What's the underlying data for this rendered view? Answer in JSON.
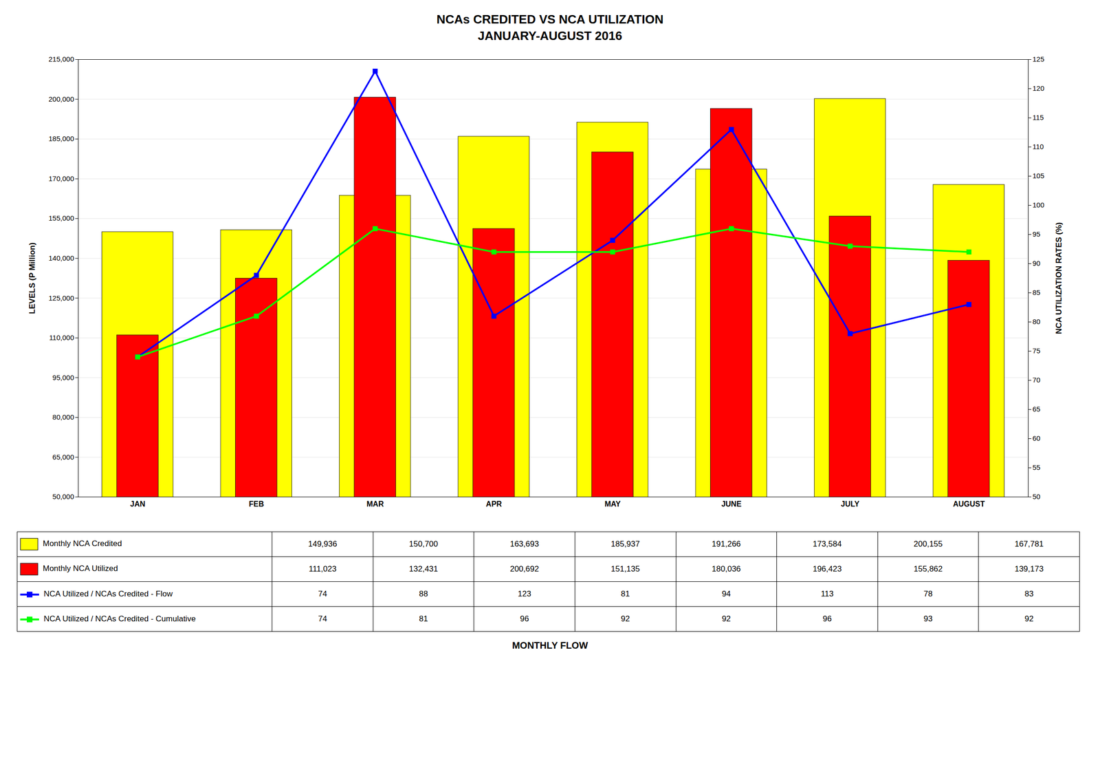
{
  "chart_data": {
    "type": "bar",
    "title": "NCAs CREDITED VS NCA UTILIZATION",
    "subtitle": "JANUARY-AUGUST 2016",
    "xlabel": "MONTHLY FLOW",
    "ylabel": "LEVELS (P Million)",
    "y2label": "NCA UTILIZATION RATES (%)",
    "categories": [
      "JAN",
      "FEB",
      "MAR",
      "APR",
      "MAY",
      "JUNE",
      "JULY",
      "AUGUST"
    ],
    "series": [
      {
        "name": "Monthly NCA Credited",
        "type": "bar",
        "color": "#FFFF00",
        "values": [
          149936,
          150700,
          163693,
          185937,
          191266,
          173584,
          200155,
          167781
        ],
        "value_labels": [
          "149,936",
          "150,700",
          "163,693",
          "185,937",
          "191,266",
          "173,584",
          "200,155",
          "167,781"
        ]
      },
      {
        "name": "Monthly NCA Utilized",
        "type": "bar",
        "color": "#FF0000",
        "values": [
          111023,
          132431,
          200692,
          151135,
          180036,
          196423,
          155862,
          139173
        ],
        "value_labels": [
          "111,023",
          "132,431",
          "200,692",
          "151,135",
          "180,036",
          "196,423",
          "155,862",
          "139,173"
        ]
      },
      {
        "name": "NCA Utilized / NCAs Credited - Flow",
        "type": "line",
        "axis": "y2",
        "color": "#0000FF",
        "marker": "square",
        "values": [
          74,
          88,
          123,
          81,
          94,
          113,
          78,
          83
        ]
      },
      {
        "name": "NCA Utilized / NCAs Credited - Cumulative",
        "type": "line",
        "axis": "y2",
        "color": "#00FF00",
        "marker": "square",
        "values": [
          74,
          81,
          96,
          92,
          92,
          96,
          93,
          92
        ]
      }
    ],
    "ylim": [
      50000,
      215000
    ],
    "yticks": [
      {
        "value": 50000,
        "label": "50,000"
      },
      {
        "value": 65000,
        "label": "65,000"
      },
      {
        "value": 80000,
        "label": "80,000"
      },
      {
        "value": 95000,
        "label": "95,000"
      },
      {
        "value": 110000,
        "label": "110,000"
      },
      {
        "value": 125000,
        "label": "125,000"
      },
      {
        "value": 140000,
        "label": "140,000"
      },
      {
        "value": 155000,
        "label": "155,000"
      },
      {
        "value": 170000,
        "label": "170,000"
      },
      {
        "value": 185000,
        "label": "185,000"
      },
      {
        "value": 200000,
        "label": "200,000"
      },
      {
        "value": 215000,
        "label": "215,000"
      }
    ],
    "y2lim": [
      50,
      125
    ],
    "y2ticks": [
      50,
      55,
      60,
      65,
      70,
      75,
      80,
      85,
      90,
      95,
      100,
      105,
      110,
      115,
      120,
      125
    ],
    "grid": true,
    "legend": "bottom"
  }
}
